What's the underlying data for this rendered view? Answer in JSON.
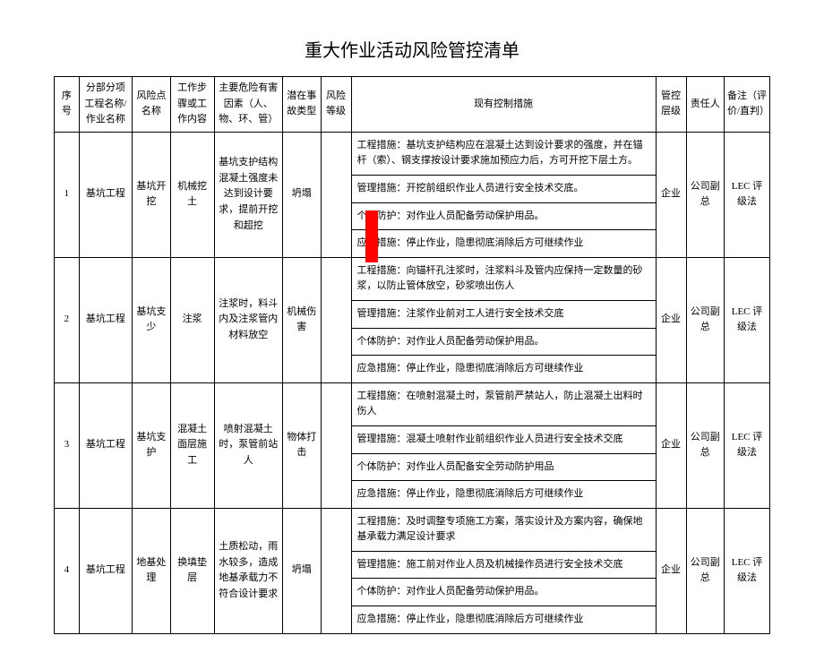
{
  "title": "重大作业活动风险管控清单",
  "columns": {
    "c0": "序号",
    "c1": "分部分项工程名称/作业名称",
    "c2": "风险点名称",
    "c3": "工作步骤或工作内容",
    "c4": "主要危险有害因素（人、物、环、管）",
    "c5": "潜在事故类型",
    "c6": "风险等级",
    "c7": "现有控制措施",
    "c8": "管控层级",
    "c9": "责任人",
    "c10": "备注（评价/直判）"
  },
  "rows": [
    {
      "no": "1",
      "name": "基坑工程",
      "risk_point": "基坑开挖",
      "step": "机械挖土",
      "factor": "基坑支护结构混凝土强度未达到设计要求，提前开挖和超挖",
      "accident": "坍塌",
      "level": "",
      "measures": [
        "工程措施：基坑支护结构应在混凝土达到设计要求的强度，并在锚杆（索）、钢支撑按设计要求施加预应力后，方可开挖下层土方。",
        "管理措施：开挖前组织作业人员进行安全技术交底。",
        "个体防护：对作业人员配备劳动保护用品。",
        "应急措施：停止作业，隐患彻底消除后方可继续作业"
      ],
      "ctrl_level": "企业",
      "owner": "公司副总",
      "remark": "LEC 评级法"
    },
    {
      "no": "2",
      "name": "基坑工程",
      "risk_point": "基坑支少",
      "step": "注浆",
      "factor": "注浆时，料斗内及注浆管内材料放空",
      "accident": "机械伤害",
      "level": "",
      "measures": [
        "工程措施：向锚杆孔注浆时，注浆料斗及管内应保持一定数量的砂浆，以防止管体放空，砂浆喷出伤人",
        "管理措施：注浆作业前对工人进行安全技术交底",
        "个体防护：对作业人员配备劳动保护用品。",
        "应急措施：停止作业，隐患彻底消除后方可继续作业"
      ],
      "ctrl_level": "企业",
      "owner": "公司副总",
      "remark": "LEC 评级法"
    },
    {
      "no": "3",
      "name": "基坑工程",
      "risk_point": "基坑支护",
      "step": "混凝土面层施工",
      "factor": "喷射混凝土时，泵管前站人",
      "accident": "物体打击",
      "level": "",
      "measures": [
        "工程措施：在喷射混凝土时，泵管前严禁站人，防止混凝土出料时伤人",
        "管理措施：混凝土喷射作业前组织作业人员进行安全技术交底",
        "个体防护：对作业人员配备安全劳动防护用品",
        "应急措施：停止作业，隐患彻底消除后方可继续作业"
      ],
      "ctrl_level": "企业",
      "owner": "公司副总",
      "remark": "LEC 评级法"
    },
    {
      "no": "4",
      "name": "基坑工程",
      "risk_point": "地基处理",
      "step": "换填垫层",
      "factor": "土质松动，雨水较多，造成地基承载力不符合设计要求",
      "accident": "坍塌",
      "level": "",
      "measures": [
        "工程措施：及时调整专项施工方案，落实设计及方案内容，确保地基承载力满足设计要求",
        "管理措施：施工前对作业人员及机械操作员进行安全技术交底",
        "个体防护：对作业人员配备劳动保护用品。",
        "应急措施：停止作业，隐患彻底消除后方可继续作业"
      ],
      "ctrl_level": "企业",
      "owner": "公司副总",
      "remark": "LEC 评级法"
    }
  ]
}
